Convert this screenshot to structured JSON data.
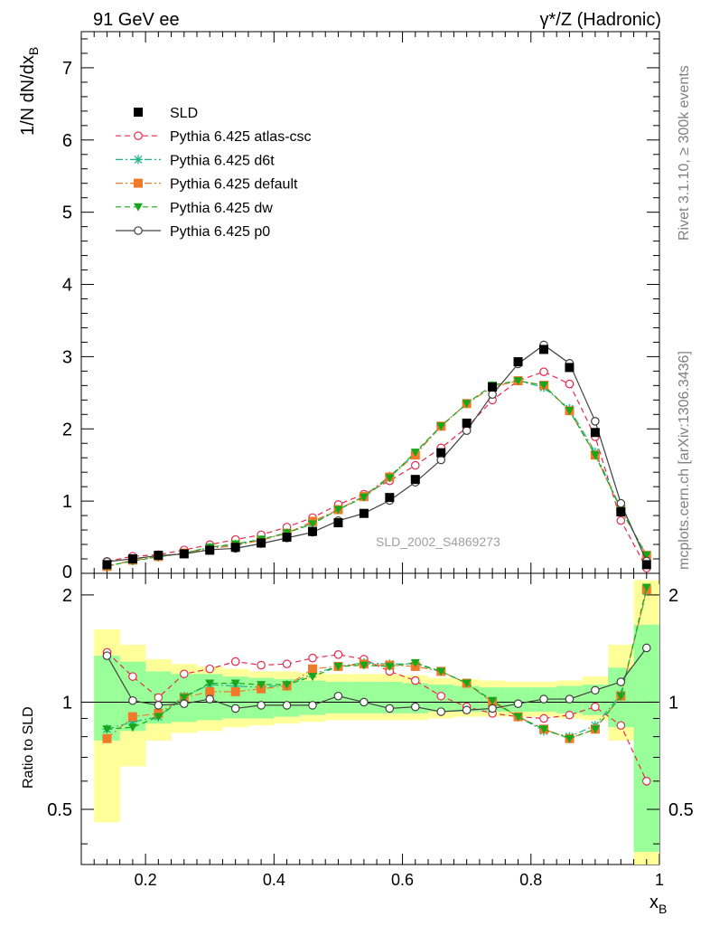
{
  "header": {
    "left": "91 GeV ee",
    "right": "γ*/Z (Hadronic)"
  },
  "side": {
    "rivet": "Rivet 3.1.10, ≥ 300k events",
    "mcplots": "mcplots.cern.ch [arXiv:1306.3436]"
  },
  "watermark": "SLD_2002_S4869273",
  "axes": {
    "ylabel_main": "1/N dN/dx",
    "ylabel_main_sub": "B",
    "ylabel_ratio": "Ratio to SLD",
    "xlabel": "x",
    "xlabel_sub": "B",
    "main_yticks": [
      "0",
      "1",
      "2",
      "3",
      "4",
      "5",
      "6",
      "7"
    ],
    "ratio_yticks": [
      "0.5",
      "1",
      "2"
    ],
    "xticks": [
      "0.2",
      "0.4",
      "0.6",
      "0.8",
      "1"
    ]
  },
  "legend": [
    {
      "label": "SLD",
      "color": "#000000",
      "marker": "square",
      "dash": "none"
    },
    {
      "label": "Pythia 6.425 atlas-csc",
      "color": "#e8294c",
      "marker": "open-circle",
      "dash": "dashed"
    },
    {
      "label": "Pythia 6.425 d6t",
      "color": "#1fb58a",
      "marker": "star",
      "dash": "dashdot"
    },
    {
      "label": "Pythia 6.425 default",
      "color": "#f07a2a",
      "marker": "square",
      "dash": "dashdot"
    },
    {
      "label": "Pythia 6.425 dw",
      "color": "#1aa61a",
      "marker": "triangle-down",
      "dash": "dashed"
    },
    {
      "label": "Pythia 6.425 p0",
      "color": "#404040",
      "marker": "open-circle",
      "dash": "solid"
    }
  ],
  "chart_data": {
    "type": "line",
    "x": [
      0.14,
      0.18,
      0.22,
      0.26,
      0.3,
      0.34,
      0.38,
      0.42,
      0.46,
      0.5,
      0.54,
      0.58,
      0.62,
      0.66,
      0.7,
      0.74,
      0.78,
      0.82,
      0.86,
      0.9,
      0.94,
      0.98
    ],
    "xlim": [
      0.1,
      1.0
    ],
    "ylim": [
      0,
      7.5
    ],
    "ratio_ylim_log": [
      0.35,
      2.3
    ],
    "sld": [
      0.12,
      0.2,
      0.25,
      0.27,
      0.32,
      0.36,
      0.42,
      0.5,
      0.58,
      0.7,
      0.83,
      1.05,
      1.3,
      1.67,
      2.08,
      2.58,
      2.93,
      3.1,
      2.85,
      1.95,
      0.85,
      0.12
    ],
    "sld_band_inner": [
      [
        0.78,
        1.35
      ],
      [
        0.83,
        1.3
      ],
      [
        0.87,
        1.22
      ],
      [
        0.88,
        1.2
      ],
      [
        0.89,
        1.2
      ],
      [
        0.9,
        1.18
      ],
      [
        0.9,
        1.17
      ],
      [
        0.91,
        1.16
      ],
      [
        0.92,
        1.15
      ],
      [
        0.93,
        1.14
      ],
      [
        0.93,
        1.14
      ],
      [
        0.93,
        1.14
      ],
      [
        0.93,
        1.13
      ],
      [
        0.94,
        1.12
      ],
      [
        0.94,
        1.11
      ],
      [
        0.94,
        1.1
      ],
      [
        0.94,
        1.1
      ],
      [
        0.94,
        1.1
      ],
      [
        0.93,
        1.11
      ],
      [
        0.92,
        1.12
      ],
      [
        0.85,
        1.25
      ],
      [
        0.38,
        1.65
      ]
    ],
    "sld_band_outer": [
      [
        0.46,
        1.6
      ],
      [
        0.66,
        1.45
      ],
      [
        0.78,
        1.32
      ],
      [
        0.82,
        1.28
      ],
      [
        0.83,
        1.26
      ],
      [
        0.85,
        1.24
      ],
      [
        0.86,
        1.22
      ],
      [
        0.87,
        1.22
      ],
      [
        0.88,
        1.21
      ],
      [
        0.89,
        1.2
      ],
      [
        0.89,
        1.2
      ],
      [
        0.89,
        1.2
      ],
      [
        0.89,
        1.19
      ],
      [
        0.9,
        1.17
      ],
      [
        0.91,
        1.16
      ],
      [
        0.91,
        1.15
      ],
      [
        0.91,
        1.14
      ],
      [
        0.91,
        1.14
      ],
      [
        0.9,
        1.15
      ],
      [
        0.89,
        1.18
      ],
      [
        0.78,
        1.45
      ],
      [
        0.35,
        2.2
      ]
    ],
    "series": [
      {
        "name": "Pythia 6.425 atlas-csc",
        "ratio": [
          1.38,
          1.18,
          1.03,
          1.2,
          1.24,
          1.3,
          1.27,
          1.28,
          1.33,
          1.36,
          1.32,
          1.22,
          1.15,
          1.04,
          0.97,
          0.93,
          0.91,
          0.9,
          0.92,
          0.97,
          0.86,
          0.6
        ]
      },
      {
        "name": "Pythia 6.425 d6t",
        "ratio": [
          0.84,
          0.88,
          0.91,
          1.04,
          1.12,
          1.11,
          1.1,
          1.12,
          1.2,
          1.26,
          1.29,
          1.28,
          1.28,
          1.22,
          1.13,
          1.0,
          0.91,
          0.83,
          0.8,
          0.86,
          1.05,
          2.05
        ]
      },
      {
        "name": "Pythia 6.425 default",
        "ratio": [
          0.79,
          0.91,
          0.93,
          1.03,
          1.07,
          1.07,
          1.09,
          1.11,
          1.24,
          1.26,
          1.28,
          1.27,
          1.26,
          1.22,
          1.13,
          1.0,
          0.91,
          0.84,
          0.79,
          0.84,
          1.04,
          2.07
        ]
      },
      {
        "name": "Pythia 6.425 dw",
        "ratio": [
          0.84,
          0.85,
          0.91,
          1.03,
          1.13,
          1.13,
          1.12,
          1.12,
          1.18,
          1.26,
          1.27,
          1.26,
          1.29,
          1.22,
          1.13,
          1.01,
          0.91,
          0.84,
          0.79,
          0.84,
          1.04,
          2.1
        ]
      },
      {
        "name": "Pythia 6.425 p0",
        "ratio": [
          1.35,
          1.01,
          0.98,
          0.99,
          1.02,
          0.96,
          0.98,
          0.98,
          0.98,
          1.04,
          1.0,
          0.96,
          0.97,
          0.94,
          0.95,
          0.96,
          0.99,
          1.02,
          1.02,
          1.08,
          1.14,
          1.42
        ]
      }
    ]
  }
}
